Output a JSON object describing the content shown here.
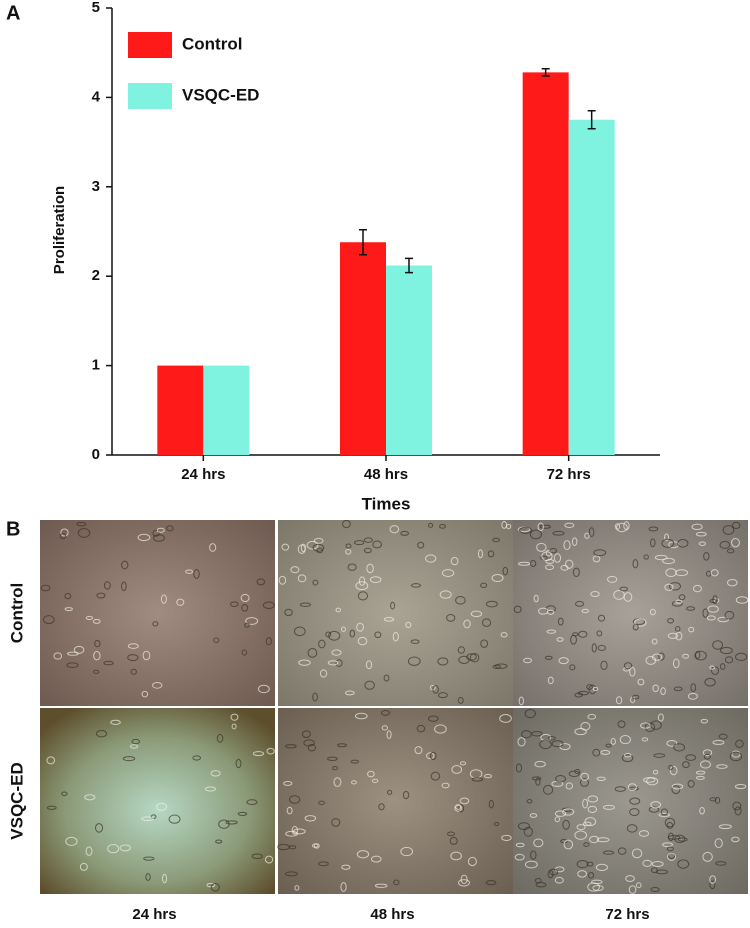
{
  "chart_data": {
    "type": "bar",
    "panel_label": "A",
    "ylabel": "Proliferation",
    "xlabel": "Times",
    "categories": [
      "24 hrs",
      "48 hrs",
      "72 hrs"
    ],
    "series": [
      {
        "name": "Control",
        "color": "#ff1a1a",
        "values": [
          1,
          2.38,
          4.28
        ],
        "errors": [
          0,
          0.14,
          0.04
        ]
      },
      {
        "name": "VSQC-ED",
        "color": "#7ff3df",
        "values": [
          1,
          2.12,
          3.75
        ],
        "errors": [
          0,
          0.08,
          0.1
        ]
      }
    ],
    "ylim": [
      0,
      5
    ],
    "yticks": [
      0,
      1,
      2,
      3,
      4,
      5
    ],
    "legend": "upper left"
  },
  "panel_b": {
    "label": "B",
    "rows": [
      "Control",
      "VSQC-ED"
    ],
    "columns": [
      "24 hrs",
      "48 hrs",
      "72 hrs"
    ]
  }
}
